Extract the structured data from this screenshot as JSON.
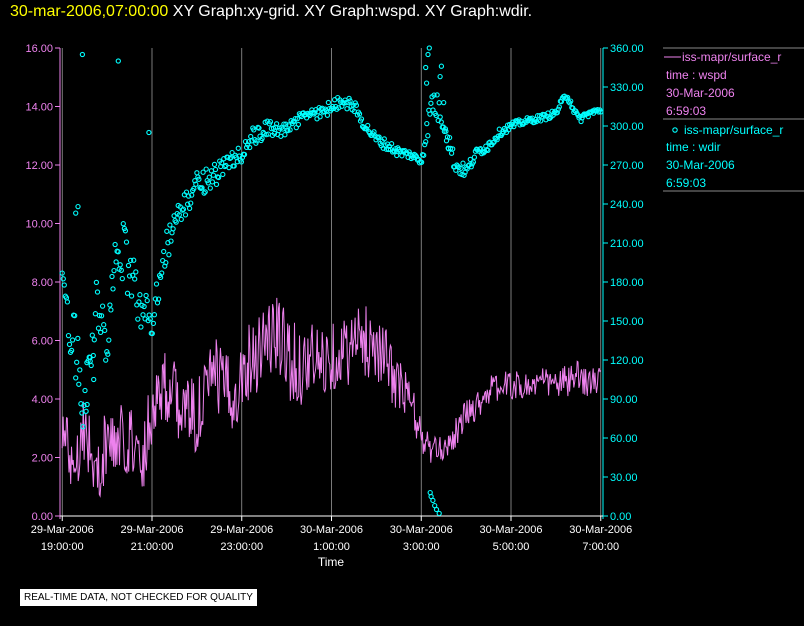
{
  "header": {
    "timestamp": "30-mar-2006,07:00:00",
    "graphs": [
      "XY Graph:xy-grid.",
      "XY Graph:wspd.",
      "XY Graph:wdir."
    ]
  },
  "footer": {
    "disclaimer": "REAL-TIME DATA, NOT CHECKED FOR QUALITY"
  },
  "legend": {
    "entries": [
      {
        "marker": "line",
        "name": "iss-mapr/surface_r",
        "var": "time : wspd",
        "date": "30-Mar-2006",
        "time": "6:59:03",
        "color": "#ee82ee"
      },
      {
        "marker": "circle",
        "name": "iss-mapr/surface_r",
        "var": "time : wdir",
        "date": "30-Mar-2006",
        "time": "6:59:03",
        "color": "#00ffff"
      }
    ]
  },
  "chart_data": {
    "type": "line",
    "xlabel": "Time",
    "x_range_hours": [
      18.95,
      31.05
    ],
    "x_ticks": [
      {
        "hour": 19,
        "date": "29-Mar-2006",
        "time": "19:00:00"
      },
      {
        "hour": 21,
        "date": "29-Mar-2006",
        "time": "21:00:00"
      },
      {
        "hour": 23,
        "date": "29-Mar-2006",
        "time": "23:00:00"
      },
      {
        "hour": 25,
        "date": "30-Mar-2006",
        "time": "1:00:00"
      },
      {
        "hour": 27,
        "date": "30-Mar-2006",
        "time": "3:00:00"
      },
      {
        "hour": 29,
        "date": "30-Mar-2006",
        "time": "5:00:00"
      },
      {
        "hour": 31,
        "date": "30-Mar-2006",
        "time": "7:00:00"
      }
    ],
    "y_left": {
      "range": [
        0,
        16
      ],
      "ticks": [
        "0.00",
        "2.00",
        "4.00",
        "6.00",
        "8.00",
        "10.00",
        "12.00",
        "14.00",
        "16.00"
      ],
      "color": "#ee82ee"
    },
    "y_right": {
      "range": [
        0,
        360
      ],
      "ticks": [
        "0.00",
        "30.00",
        "60.00",
        "90.00",
        "120.00",
        "150.00",
        "180.00",
        "210.00",
        "240.00",
        "270.00",
        "300.00",
        "330.00",
        "360.00"
      ],
      "color": "#00ffff"
    },
    "grid": {
      "vertical": true,
      "horizontal": false
    },
    "series": [
      {
        "name": "wspd",
        "axis": "left",
        "style": "line",
        "color": "#ee82ee",
        "x": [
          19.0,
          19.25,
          19.5,
          19.75,
          20.0,
          20.25,
          20.5,
          20.75,
          21.0,
          21.25,
          21.5,
          21.75,
          22.0,
          22.25,
          22.5,
          22.75,
          23.0,
          23.25,
          23.5,
          23.75,
          24.0,
          24.25,
          24.5,
          24.75,
          25.0,
          25.25,
          25.5,
          25.75,
          26.0,
          26.25,
          26.5,
          26.75,
          27.0,
          27.25,
          27.5,
          27.75,
          28.0,
          28.25,
          28.5,
          28.75,
          29.0,
          29.25,
          29.5,
          29.75,
          30.0,
          30.25,
          30.5,
          30.75,
          31.0
        ],
        "y": [
          3.0,
          1.8,
          3.2,
          1.2,
          2.6,
          2.4,
          2.8,
          1.6,
          3.8,
          4.6,
          4.0,
          3.6,
          3.4,
          4.4,
          4.8,
          4.0,
          4.8,
          5.6,
          6.0,
          6.2,
          5.6,
          5.0,
          5.4,
          5.2,
          5.5,
          5.6,
          5.8,
          6.0,
          5.9,
          5.2,
          4.4,
          4.0,
          2.7,
          2.2,
          2.3,
          2.8,
          3.5,
          3.8,
          4.3,
          4.4,
          4.5,
          4.4,
          4.5,
          4.6,
          4.5,
          4.6,
          4.7,
          4.6,
          4.6
        ],
        "noise": [
          2.0,
          2.4,
          2.6,
          2.4,
          2.4,
          2.6,
          2.6,
          2.4,
          2.6,
          2.6,
          2.6,
          2.6,
          2.6,
          2.8,
          2.8,
          2.6,
          2.6,
          3.0,
          3.2,
          3.2,
          3.0,
          2.8,
          2.6,
          2.6,
          2.4,
          2.4,
          2.6,
          2.6,
          2.4,
          2.2,
          2.0,
          1.6,
          1.2,
          1.0,
          0.8,
          1.0,
          1.0,
          1.0,
          1.0,
          1.0,
          1.0,
          1.0,
          1.0,
          1.0,
          1.0,
          1.2,
          1.2,
          1.0,
          1.0
        ]
      },
      {
        "name": "wdir",
        "axis": "right",
        "style": "scatter",
        "color": "#00ffff",
        "x": [
          19.0,
          19.25,
          19.5,
          19.75,
          20.0,
          20.25,
          20.5,
          20.75,
          21.0,
          21.25,
          21.5,
          21.75,
          22.0,
          22.25,
          22.5,
          22.75,
          23.0,
          23.25,
          23.5,
          23.75,
          24.0,
          24.25,
          24.5,
          24.75,
          25.0,
          25.25,
          25.5,
          25.75,
          26.0,
          26.25,
          26.5,
          26.75,
          27.0,
          27.25,
          27.5,
          27.75,
          28.0,
          28.25,
          28.5,
          28.75,
          29.0,
          29.25,
          29.5,
          29.75,
          30.0,
          30.25,
          30.5,
          30.75,
          31.0
        ],
        "y": [
          170,
          140,
          80,
          160,
          130,
          210,
          190,
          160,
          150,
          200,
          225,
          240,
          255,
          260,
          265,
          272,
          280,
          290,
          295,
          300,
          295,
          305,
          310,
          310,
          315,
          320,
          315,
          300,
          290,
          285,
          280,
          278,
          273,
          320,
          305,
          270,
          265,
          280,
          285,
          295,
          300,
          303,
          305,
          307,
          310,
          325,
          305,
          310,
          312
        ],
        "noise": [
          35,
          50,
          40,
          45,
          40,
          50,
          45,
          35,
          30,
          25,
          25,
          20,
          20,
          20,
          18,
          18,
          18,
          18,
          15,
          15,
          12,
          12,
          10,
          10,
          10,
          10,
          10,
          8,
          8,
          8,
          8,
          6,
          8,
          25,
          20,
          12,
          10,
          8,
          8,
          6,
          6,
          5,
          5,
          5,
          5,
          8,
          6,
          5,
          4
        ]
      }
    ],
    "extra_points": [
      {
        "series": "wdir",
        "x": [
          19.45,
          20.25,
          20.93,
          19.3,
          19.35,
          19.55,
          19.62,
          19.7
        ],
        "y": [
          355,
          350,
          295,
          233,
          238,
          118,
          122,
          105
        ]
      },
      {
        "series": "wdir",
        "x": [
          27.1,
          27.12,
          27.15,
          27.18,
          27.2,
          27.22,
          27.26,
          27.3,
          27.34,
          27.4,
          27.42,
          27.45,
          27.5,
          27.55,
          27.6
        ],
        "y": [
          345,
          333,
          355,
          362,
          18,
          15,
          12,
          8,
          5,
          2,
          338,
          346,
          318,
          296,
          283
        ]
      }
    ]
  }
}
